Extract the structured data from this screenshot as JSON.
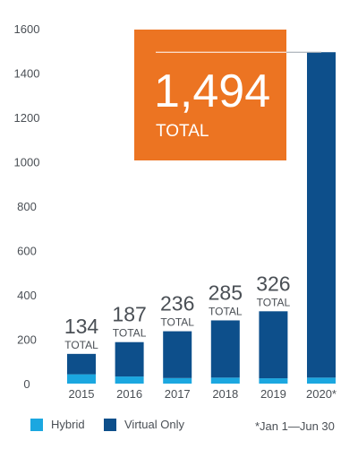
{
  "chart_data": {
    "type": "bar",
    "stacked": true,
    "categories": [
      "2015",
      "2016",
      "2017",
      "2018",
      "2019",
      "2020*"
    ],
    "series": [
      {
        "name": "Hybrid",
        "color": "#1ba7e0",
        "values": [
          42,
          32,
          25,
          27,
          24,
          27
        ]
      },
      {
        "name": "Virtual Only",
        "color": "#0d4f8b",
        "values": [
          92,
          155,
          211,
          258,
          302,
          1467
        ]
      }
    ],
    "totals": [
      "134",
      "187",
      "236",
      "285",
      "326",
      "1,494"
    ],
    "total_label": "TOTAL",
    "ylim": [
      0,
      1600
    ],
    "yticks": [
      "0",
      "200",
      "400",
      "600",
      "800",
      "1000",
      "1200",
      "1400",
      "1600"
    ],
    "grid": false,
    "legend_position": "bottom",
    "highlight_color": "#ec7422",
    "footnote": "*Jan 1—Jun 30"
  }
}
